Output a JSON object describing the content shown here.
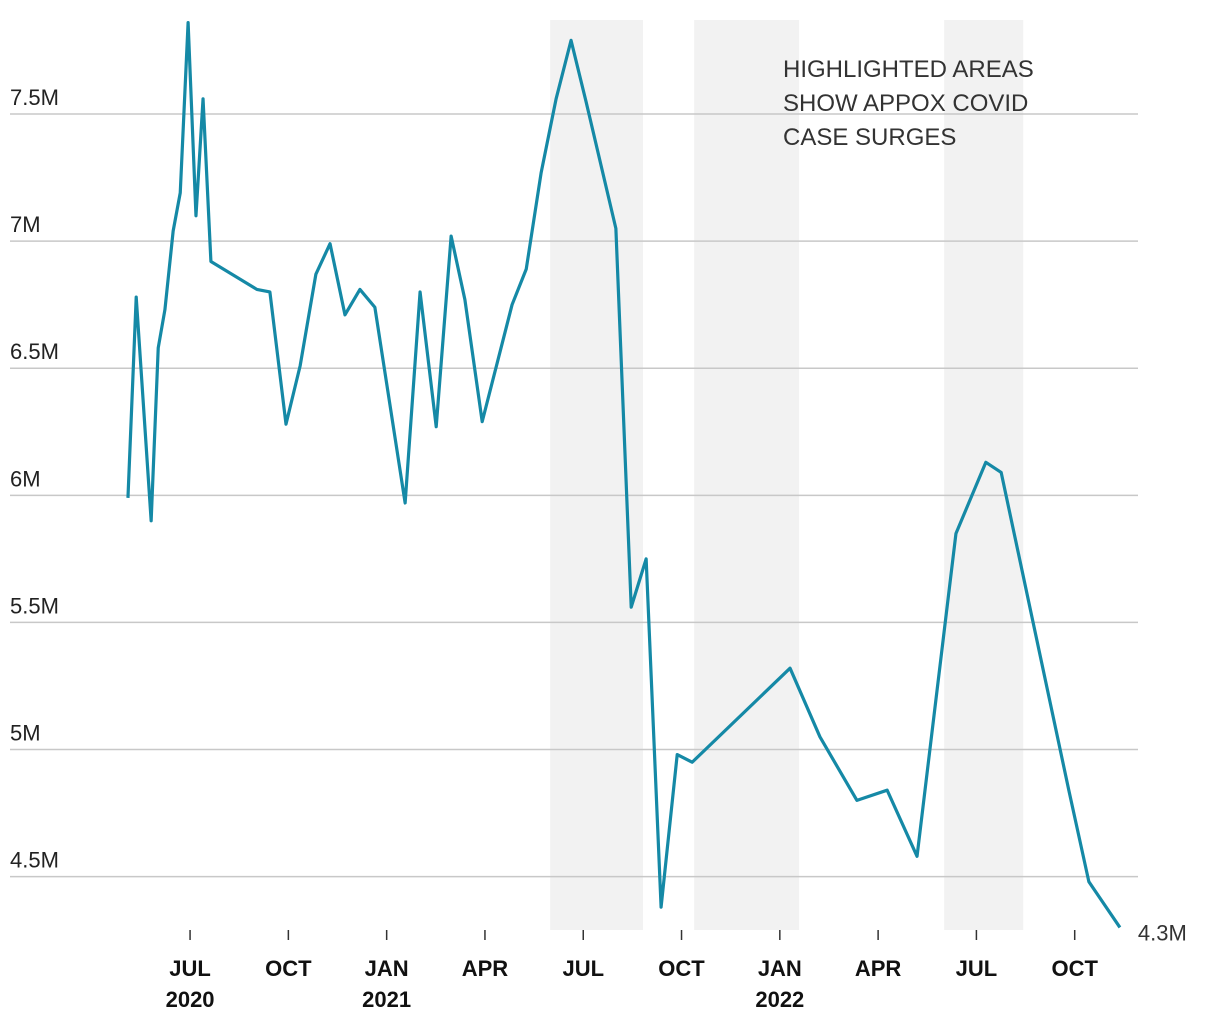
{
  "chart_data": {
    "type": "line",
    "annotation": [
      "HIGHLIGHTED AREAS",
      "SHOW APPOX COVID",
      "CASE SURGES"
    ],
    "x": [
      2020.342,
      2020.363,
      2020.401,
      2020.419,
      2020.436,
      2020.457,
      2020.475,
      2020.495,
      2020.515,
      2020.533,
      2020.553,
      2020.67,
      2020.703,
      2020.744,
      2020.78,
      2020.82,
      2020.856,
      2020.894,
      2020.932,
      2020.97,
      2021.047,
      2021.085,
      2021.126,
      2021.164,
      2021.199,
      2021.243,
      2021.319,
      2021.355,
      2021.393,
      2021.431,
      2021.469,
      2021.507,
      2021.583,
      2021.622,
      2021.66,
      2021.698,
      2021.739,
      2021.777,
      2022.026,
      2022.102,
      2022.196,
      2022.273,
      2022.349,
      2022.448,
      2022.524,
      2022.563,
      2022.735,
      2022.786,
      2022.865
    ],
    "values": [
      5990000,
      6780000,
      5900000,
      6580000,
      6730000,
      7040000,
      7190000,
      7860000,
      7100000,
      7560000,
      6920000,
      6810000,
      6800000,
      6280000,
      6510000,
      6870000,
      6990000,
      6710000,
      6810000,
      6740000,
      5970000,
      6800000,
      6270000,
      7020000,
      6770000,
      6290000,
      6750000,
      6890000,
      7270000,
      7560000,
      7790000,
      7550000,
      7050000,
      5560000,
      5750000,
      4380000,
      4980000,
      4950000,
      5320000,
      5050000,
      4800000,
      4840000,
      4580000,
      5850000,
      6130000,
      6090000,
      4840000,
      4480000,
      4300000
    ],
    "value_labels": [
      null,
      null,
      null,
      null,
      null,
      null,
      null,
      null,
      null,
      null,
      null,
      null,
      null,
      null,
      null,
      null,
      null,
      null,
      null,
      null,
      null,
      null,
      null,
      null,
      null,
      null,
      null,
      null,
      null,
      null,
      null,
      null,
      null,
      null,
      null,
      null,
      null,
      null,
      null,
      null,
      null,
      null,
      null,
      null,
      null,
      null,
      null,
      null,
      "4.3M"
    ],
    "color": "#1589a6",
    "highlights": [
      {
        "start": 2021.416,
        "end": 2021.652
      },
      {
        "start": 2021.782,
        "end": 2022.049
      },
      {
        "start": 2022.418,
        "end": 2022.619
      }
    ],
    "highlight_color": "#f2f2f2",
    "xlim": [
      2020.042,
      2022.911
    ],
    "xticks": [
      {
        "value": 2020.5,
        "label": "JUL"
      },
      {
        "value": 2020.75,
        "label": "OCT"
      },
      {
        "value": 2021.0,
        "label": "JAN"
      },
      {
        "value": 2021.25,
        "label": "APR"
      },
      {
        "value": 2021.5,
        "label": "JUL"
      },
      {
        "value": 2021.75,
        "label": "OCT"
      },
      {
        "value": 2022.0,
        "label": "JAN"
      },
      {
        "value": 2022.25,
        "label": "APR"
      },
      {
        "value": 2022.5,
        "label": "JUL"
      },
      {
        "value": 2022.75,
        "label": "OCT"
      }
    ],
    "xtick_years": [
      {
        "value": 2020.5,
        "label": "2020"
      },
      {
        "value": 2021.0,
        "label": "2021"
      },
      {
        "value": 2022.0,
        "label": "2022"
      }
    ],
    "ylim": [
      4290000,
      7870000
    ],
    "yticks": [
      {
        "value": 4500000,
        "label": "4.5M"
      },
      {
        "value": 5000000,
        "label": "5M"
      },
      {
        "value": 5500000,
        "label": "5.5M"
      },
      {
        "value": 6000000,
        "label": "6M"
      },
      {
        "value": 6500000,
        "label": "6.5M"
      },
      {
        "value": 7000000,
        "label": "7M"
      },
      {
        "value": 7500000,
        "label": "7.5M"
      }
    ],
    "grid": true
  }
}
